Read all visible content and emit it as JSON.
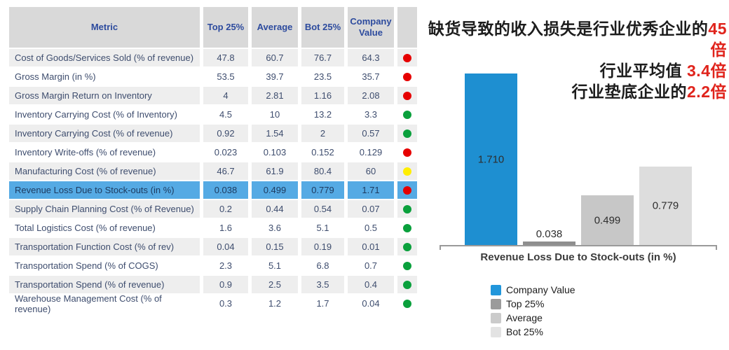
{
  "table": {
    "headers": [
      "Metric",
      "Top 25%",
      "Average",
      "Bot 25%",
      "Company Value"
    ],
    "status_colors": {
      "red": "#e60000",
      "green": "#0aa03c",
      "yellow": "#ffee00"
    },
    "highlight_color": "#55aae4",
    "rows": [
      {
        "metric": "Cost of Goods/Services Sold (% of revenue)",
        "top25": "47.8",
        "average": "60.7",
        "bot25": "76.7",
        "company": "64.3",
        "status": "red",
        "highlight": false
      },
      {
        "metric": "Gross Margin (in %)",
        "top25": "53.5",
        "average": "39.7",
        "bot25": "23.5",
        "company": "35.7",
        "status": "red",
        "highlight": false
      },
      {
        "metric": "Gross Margin Return on Inventory",
        "top25": "4",
        "average": "2.81",
        "bot25": "1.16",
        "company": "2.08",
        "status": "red",
        "highlight": false
      },
      {
        "metric": "Inventory Carrying Cost (% of Inventory)",
        "top25": "4.5",
        "average": "10",
        "bot25": "13.2",
        "company": "3.3",
        "status": "green",
        "highlight": false
      },
      {
        "metric": "Inventory Carrying Cost (% of revenue)",
        "top25": "0.92",
        "average": "1.54",
        "bot25": "2",
        "company": "0.57",
        "status": "green",
        "highlight": false
      },
      {
        "metric": "Inventory Write-offs (% of revenue)",
        "top25": "0.023",
        "average": "0.103",
        "bot25": "0.152",
        "company": "0.129",
        "status": "red",
        "highlight": false
      },
      {
        "metric": "Manufacturing Cost (% of revenue)",
        "top25": "46.7",
        "average": "61.9",
        "bot25": "80.4",
        "company": "60",
        "status": "yellow",
        "highlight": false
      },
      {
        "metric": "Revenue Loss Due to Stock-outs (in %)",
        "top25": "0.038",
        "average": "0.499",
        "bot25": "0.779",
        "company": "1.71",
        "status": "red",
        "highlight": true
      },
      {
        "metric": "Supply Chain Planning Cost (% of Revenue)",
        "top25": "0.2",
        "average": "0.44",
        "bot25": "0.54",
        "company": "0.07",
        "status": "green",
        "highlight": false
      },
      {
        "metric": "Total Logistics Cost (% of revenue)",
        "top25": "1.6",
        "average": "3.6",
        "bot25": "5.1",
        "company": "0.5",
        "status": "green",
        "highlight": false
      },
      {
        "metric": "Transportation Function Cost (% of rev)",
        "top25": "0.04",
        "average": "0.15",
        "bot25": "0.19",
        "company": "0.01",
        "status": "green",
        "highlight": false
      },
      {
        "metric": "Transportation Spend (% of COGS)",
        "top25": "2.3",
        "average": "5.1",
        "bot25": "6.8",
        "company": "0.7",
        "status": "green",
        "highlight": false
      },
      {
        "metric": "Transportation Spend (% of revenue)",
        "top25": "0.9",
        "average": "2.5",
        "bot25": "3.5",
        "company": "0.4",
        "status": "green",
        "highlight": false
      },
      {
        "metric": "Warehouse Management Cost (% of revenue)",
        "top25": "0.3",
        "average": "1.2",
        "bot25": "1.7",
        "company": "0.04",
        "status": "green",
        "highlight": false
      }
    ]
  },
  "annotation": {
    "line1_black": "缺货导致的收入损失是行业优秀企业的",
    "line1_red": "45倍",
    "line2_black": "行业平均值 ",
    "line2_red": "3.4倍",
    "line3_black": "行业垫底企业的",
    "line3_red": "2.2倍",
    "red_color": "#e0241c"
  },
  "chart_data": {
    "type": "bar",
    "title": "",
    "xlabel": "Revenue Loss Due to Stock-outs (in %)",
    "ylabel": "",
    "ylim": [
      0,
      1.8
    ],
    "grid": false,
    "legend_position": "bottom-left",
    "categories": [
      "Company Value",
      "Top 25%",
      "Average",
      "Bot 25%"
    ],
    "series": [
      {
        "name": "Company Value",
        "value": 1.71,
        "label": "1.710",
        "color": "#1e8fd1"
      },
      {
        "name": "Top 25%",
        "value": 0.038,
        "label": "0.038",
        "color": "#8e8e8e"
      },
      {
        "name": "Average",
        "value": 0.499,
        "label": "0.499",
        "color": "#c7c7c7"
      },
      {
        "name": "Bot 25%",
        "value": 0.779,
        "label": "0.779",
        "color": "#dddddd"
      }
    ],
    "legend": [
      {
        "label": "Company Value",
        "color": "#2196db"
      },
      {
        "label": "Top 25%",
        "color": "#9b9b9b"
      },
      {
        "label": "Average",
        "color": "#cbcbcb"
      },
      {
        "label": "Bot 25%",
        "color": "#e3e3e3"
      }
    ]
  }
}
